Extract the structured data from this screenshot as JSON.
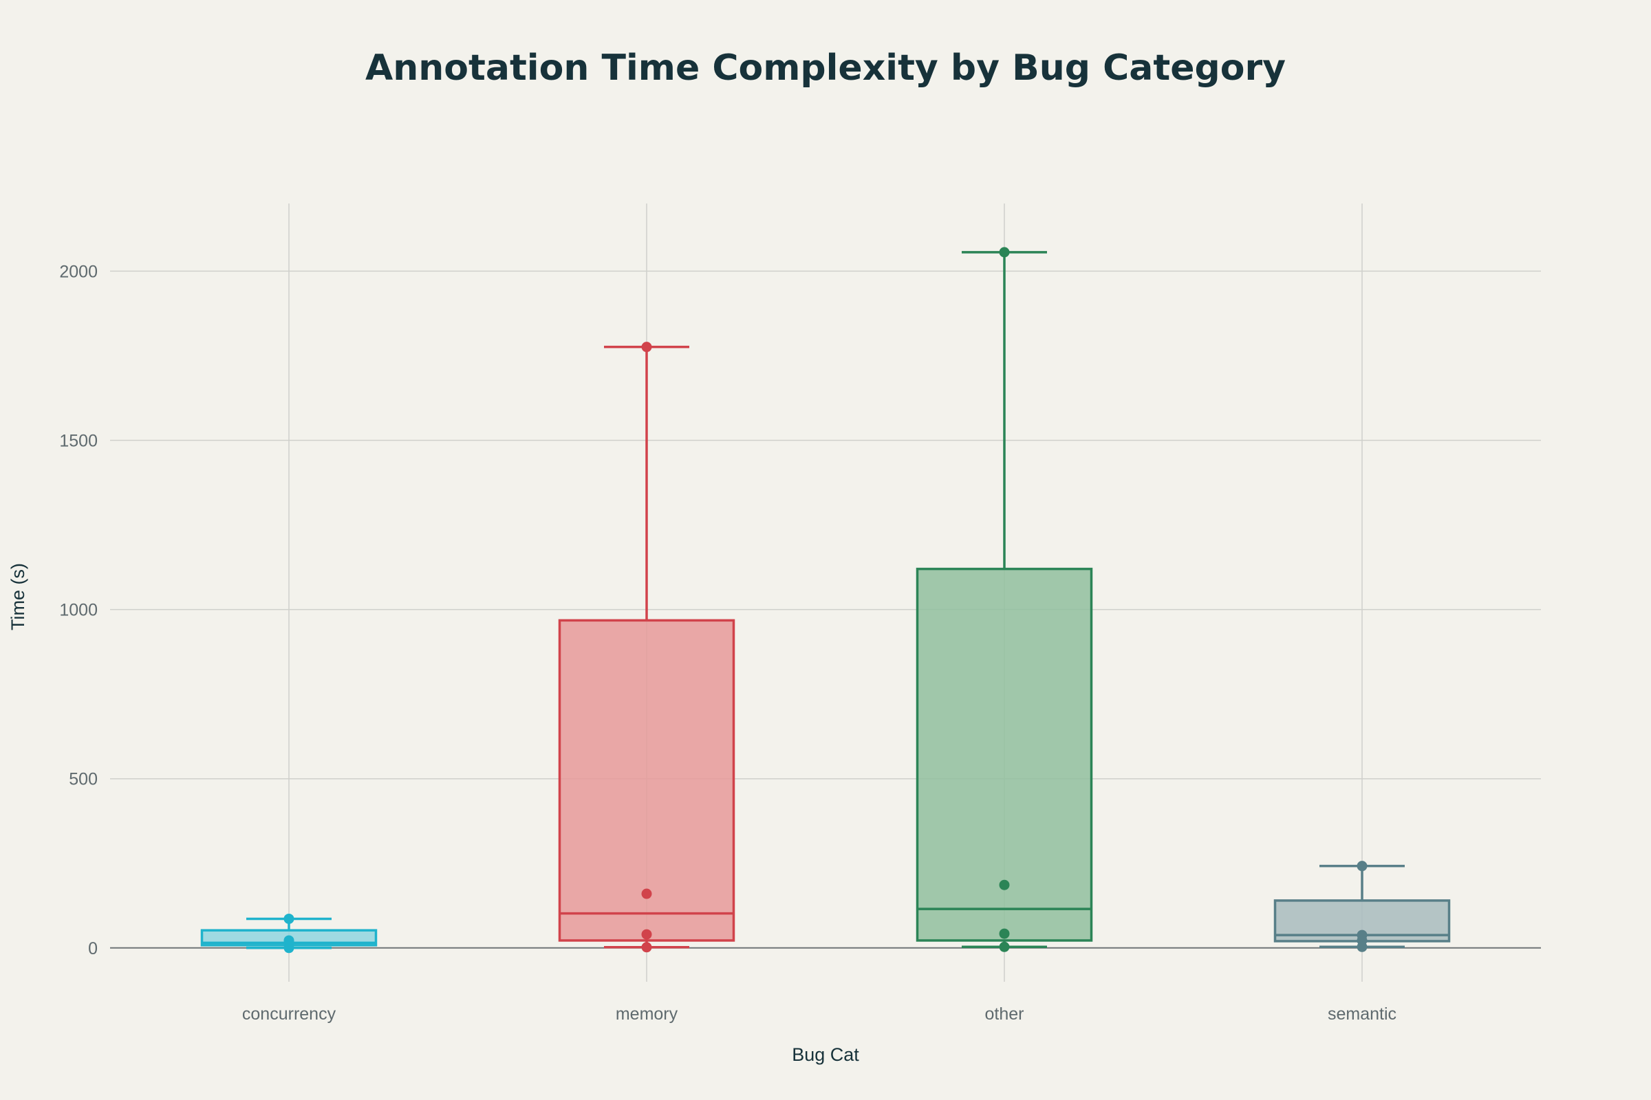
{
  "chart_data": {
    "type": "box",
    "title": "Annotation Time Complexity by Bug Category",
    "xlabel": "Bug Cat",
    "ylabel": "Time (s)",
    "ylim": [
      -100,
      2200
    ],
    "yticks": [
      0,
      500,
      1000,
      1500,
      2000
    ],
    "grid": true,
    "legend": "none",
    "categories": [
      "concurrency",
      "memory",
      "other",
      "semantic"
    ],
    "series": [
      {
        "category": "concurrency",
        "color": "#1fb3cc",
        "fill": "#8fd6e0",
        "min": 0,
        "q1": 8,
        "median": 15,
        "q3": 52,
        "max": 86,
        "points": [
          86,
          22,
          16,
          0
        ]
      },
      {
        "category": "memory",
        "color": "#d1434b",
        "fill": "#e69a9a",
        "min": 2,
        "q1": 22,
        "median": 102,
        "q3": 968,
        "max": 1776,
        "points": [
          1776,
          160,
          40,
          2
        ]
      },
      {
        "category": "other",
        "color": "#2b8456",
        "fill": "#91bf9f",
        "min": 3,
        "q1": 22,
        "median": 115,
        "q3": 1120,
        "max": 2056,
        "points": [
          2056,
          186,
          42,
          3
        ]
      },
      {
        "category": "semantic",
        "color": "#587f88",
        "fill": "#a8bcbe",
        "min": 3,
        "q1": 20,
        "median": 38,
        "q3": 140,
        "max": 242,
        "points": [
          242,
          38,
          22,
          3
        ]
      }
    ]
  }
}
